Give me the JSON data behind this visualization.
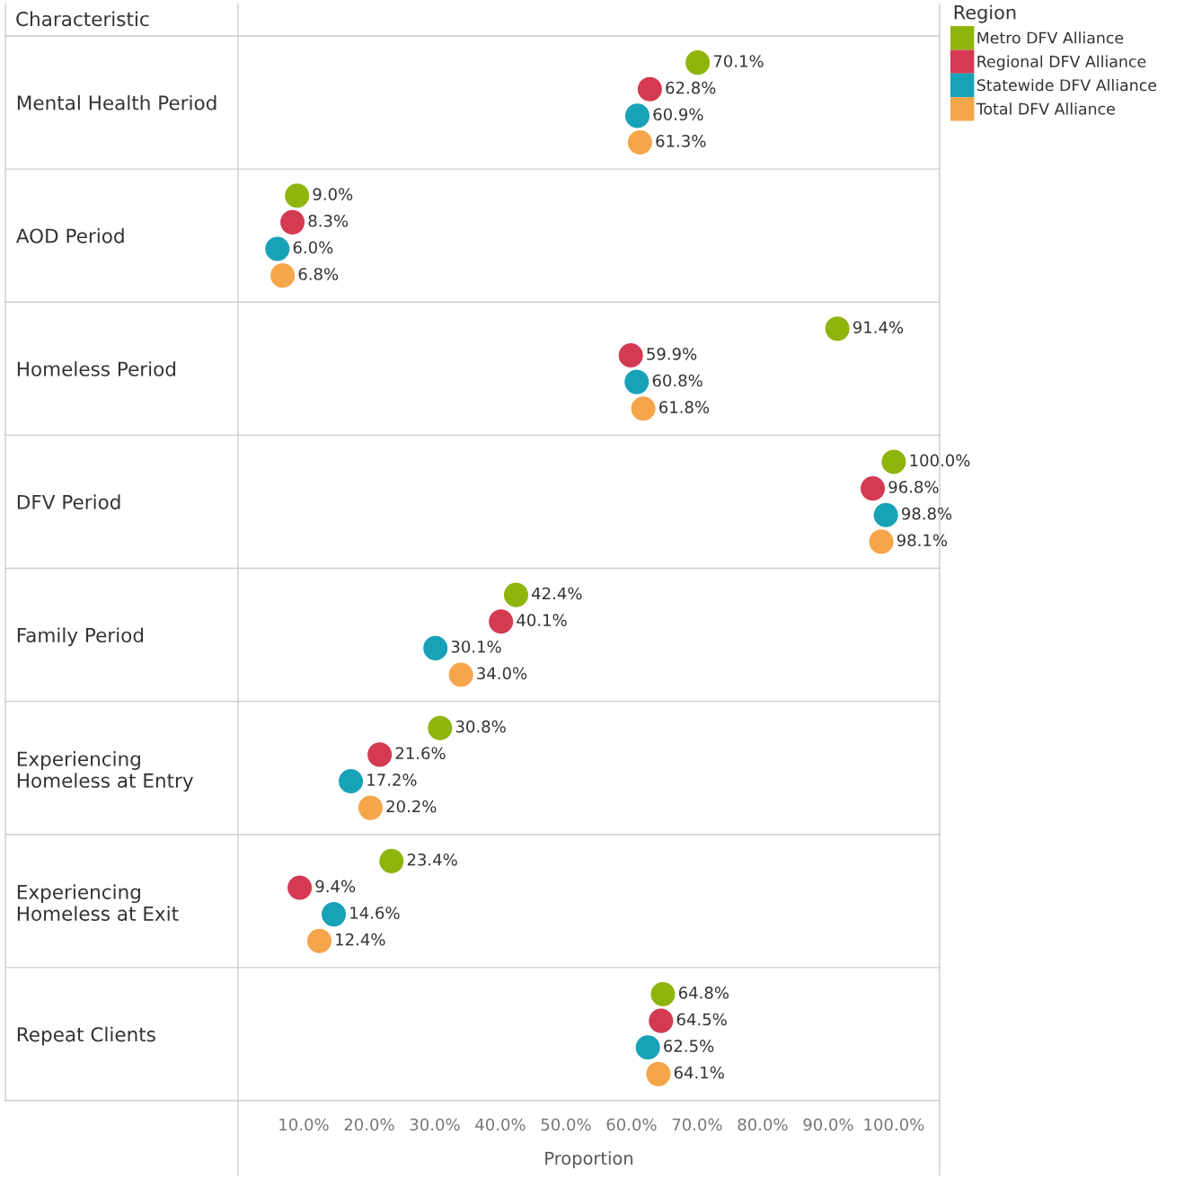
{
  "chart_data": {
    "type": "scatter",
    "orientation": "horizontal",
    "xlabel": "Proportion",
    "ylabel": "Characteristic",
    "legend_title": "Region",
    "legend": "top right",
    "grid": false,
    "marker": "circle",
    "categories": [
      "Mental Health Period",
      "AOD Period",
      "Homeless Period",
      "DFV Period",
      "Family Period",
      "Experiencing\nHomeless at Entry",
      "Experiencing\nHomeless at Exit",
      "Repeat Clients"
    ],
    "xlim": [
      0,
      107
    ],
    "xticks": [
      {
        "value": 10,
        "label": "10.0%"
      },
      {
        "value": 20,
        "label": "20.0%"
      },
      {
        "value": 30,
        "label": "30.0%"
      },
      {
        "value": 40,
        "label": "40.0%"
      },
      {
        "value": 50,
        "label": "50.0%"
      },
      {
        "value": 60,
        "label": "60.0%"
      },
      {
        "value": 70,
        "label": "70.0%"
      },
      {
        "value": 80,
        "label": "80.0%"
      },
      {
        "value": 90,
        "label": "90.0%"
      },
      {
        "value": 100,
        "label": "100.0%"
      }
    ],
    "series": [
      {
        "name": "Metro DFV Alliance",
        "color": "#8fb50d",
        "values": [
          70.1,
          9.0,
          91.4,
          100.0,
          42.4,
          30.8,
          23.4,
          64.8
        ],
        "value_labels": [
          "70.1%",
          "9.0%",
          "91.4%",
          "100.0%",
          "42.4%",
          "30.8%",
          "23.4%",
          "64.8%"
        ]
      },
      {
        "name": "Regional DFV Alliance",
        "color": "#d43a52",
        "values": [
          62.8,
          8.3,
          59.9,
          96.8,
          40.1,
          21.6,
          9.4,
          64.5
        ],
        "value_labels": [
          "62.8%",
          "8.3%",
          "59.9%",
          "96.8%",
          "40.1%",
          "21.6%",
          "9.4%",
          "64.5%"
        ]
      },
      {
        "name": "Statewide DFV Alliance",
        "color": "#17a2b8",
        "values": [
          60.9,
          6.0,
          60.8,
          98.8,
          30.1,
          17.2,
          14.6,
          62.5
        ],
        "value_labels": [
          "60.9%",
          "6.0%",
          "60.8%",
          "98.8%",
          "30.1%",
          "17.2%",
          "14.6%",
          "62.5%"
        ]
      },
      {
        "name": "Total DFV Alliance",
        "color": "#f5a54a",
        "values": [
          61.3,
          6.8,
          61.8,
          98.1,
          34.0,
          20.2,
          12.4,
          64.1
        ],
        "value_labels": [
          "61.3%",
          "6.8%",
          "61.8%",
          "98.1%",
          "34.0%",
          "20.2%",
          "12.4%",
          "64.1%"
        ]
      }
    ]
  }
}
